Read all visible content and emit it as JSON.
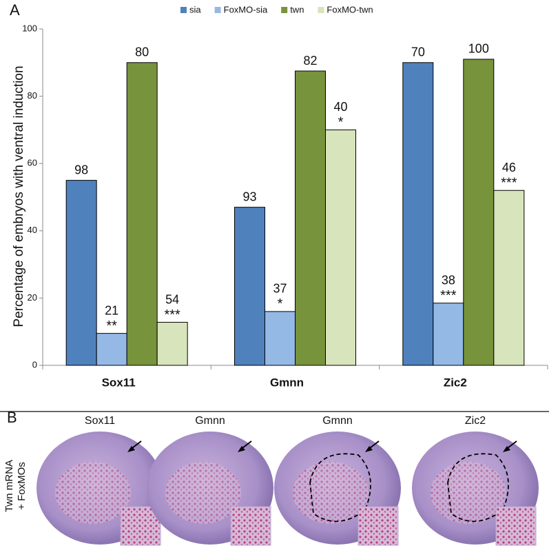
{
  "panel_a_label": "A",
  "chart_data": {
    "type": "bar",
    "y_label": "Percentage of embryos with ventral induction",
    "categories": [
      "Sox11",
      "Gmnn",
      "Zic2"
    ],
    "series": [
      {
        "name": "sia",
        "color": "#4f81bd",
        "values": [
          55,
          47,
          90
        ],
        "n": [
          98,
          93,
          70
        ]
      },
      {
        "name": "FoxMO-sia",
        "color": "#95b9e5",
        "values": [
          9.5,
          16,
          18.5
        ],
        "n": [
          21,
          37,
          38
        ],
        "sig": [
          "**",
          "*",
          "***"
        ]
      },
      {
        "name": "twn",
        "color": "#77933c",
        "values": [
          90,
          87.5,
          91
        ],
        "n": [
          80,
          82,
          100
        ]
      },
      {
        "name": "FoxMO-twn",
        "color": "#d7e4bc",
        "values": [
          12.8,
          70,
          52
        ],
        "n": [
          54,
          40,
          46
        ],
        "sig": [
          "***",
          "*",
          "***"
        ]
      }
    ],
    "ylim": [
      0,
      100
    ],
    "yticks": [
      0,
      20,
      40,
      60,
      80,
      100
    ],
    "grid": false,
    "legend": "top"
  },
  "panel_b": {
    "label": "B",
    "side_label": [
      "Twn mRNA",
      "+ FoxMOs"
    ],
    "images": [
      {
        "title": "Sox11",
        "outlined": false
      },
      {
        "title": "Gmnn",
        "outlined": false
      },
      {
        "title": "Gmnn",
        "outlined": true
      },
      {
        "title": "Zic2",
        "outlined": true
      }
    ]
  }
}
